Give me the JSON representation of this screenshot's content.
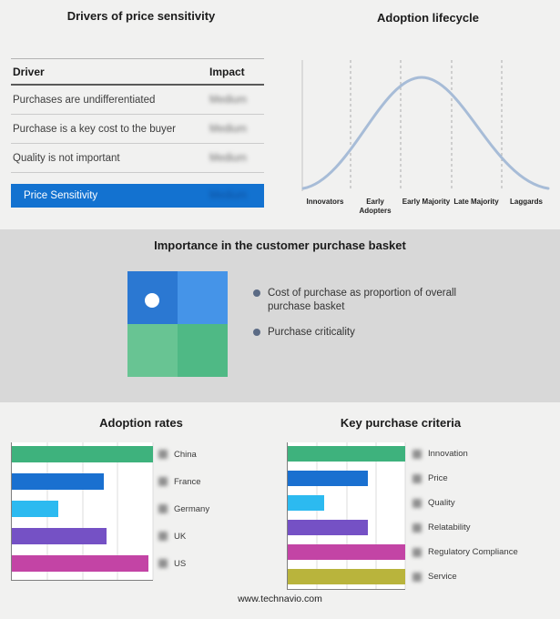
{
  "page": {
    "background_color": "#f1f1f0",
    "band_color": "#d8d8d8",
    "footer_url": "www.technavio.com"
  },
  "drivers": {
    "title": "Drivers of price sensitivity",
    "col_driver": "Driver",
    "col_impact": "Impact",
    "impact_values_blurred": true,
    "rows": [
      {
        "driver": "Purchases are undifferentiated",
        "impact": "Medium"
      },
      {
        "driver": "Purchase is a key cost to the buyer",
        "impact": "Medium"
      },
      {
        "driver": "Quality is not important",
        "impact": "Medium"
      }
    ],
    "highlight": {
      "driver": "Price Sensitivity",
      "impact": "Medium"
    },
    "highlight_color": "#1372d0"
  },
  "basket": {
    "title": "Importance in the customer purchase basket",
    "legend": [
      "Cost of purchase as proportion of overall purchase basket",
      "Purchase criticality"
    ],
    "quadrant_colors": [
      "#2b78d2",
      "#4594e8",
      "#68c493",
      "#4fb985"
    ],
    "dot_color": "#ffffff",
    "bullet_color": "#5b6b85"
  },
  "chart_data": [
    {
      "type": "bar",
      "orientation": "horizontal",
      "title": "Adoption rates",
      "categories": [
        "China",
        "France",
        "Germany",
        "UK",
        "US"
      ],
      "values": [
        100,
        65,
        33,
        67,
        97
      ],
      "value_scale": "relative-percent-of-max (no numeric axis labels shown)",
      "colors": [
        "#3eb27d",
        "#1a70d0",
        "#2cbaf0",
        "#7551c5",
        "#c344a5"
      ],
      "grid": true,
      "row_icons": "blurred-flag-icons"
    },
    {
      "type": "bar",
      "orientation": "horizontal",
      "title": "Key purchase criteria",
      "categories": [
        "Innovation",
        "Price",
        "Quality",
        "Relatability",
        "Regulatory Compliance",
        "Service"
      ],
      "values": [
        100,
        68,
        31,
        68,
        100,
        100
      ],
      "value_scale": "relative-percent-of-max (no numeric axis labels shown)",
      "colors": [
        "#3eb27d",
        "#1a70d0",
        "#2cbaf0",
        "#7551c5",
        "#c344a5",
        "#b9b43c"
      ],
      "grid": true,
      "row_icons": "blurred-icons"
    },
    {
      "type": "line",
      "title": "Adoption lifecycle",
      "categories": [
        "Innovators",
        "Early Adopters",
        "Early Majority",
        "Late Majority",
        "Laggards"
      ],
      "values": [
        8,
        55,
        100,
        55,
        8
      ],
      "value_scale": "qualitative bell curve (no numeric axis shown)",
      "curve_color": "#a7bcd7",
      "grid": "dashed vertical segment dividers"
    }
  ]
}
